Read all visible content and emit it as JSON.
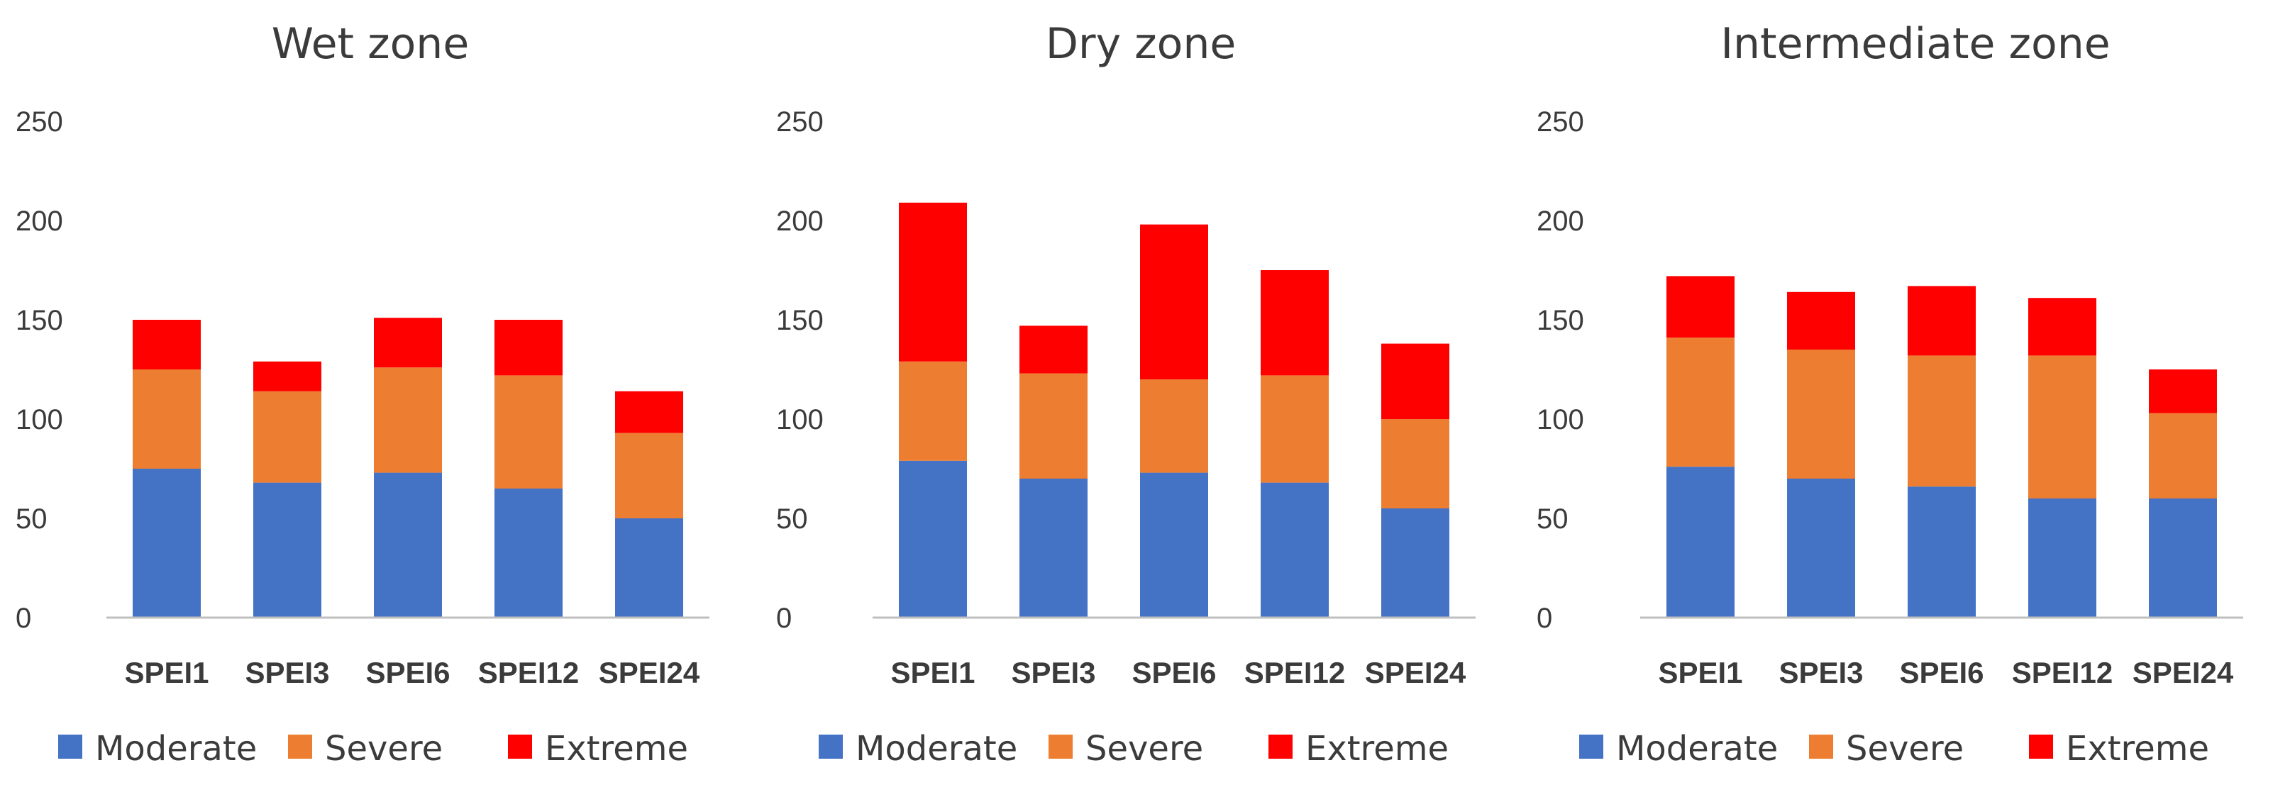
{
  "chart_data": [
    {
      "type": "bar",
      "stacked": true,
      "title": "Wet zone",
      "categories": [
        "SPEI1",
        "SPEI3",
        "SPEI6",
        "SPEI12",
        "SPEI24"
      ],
      "series": [
        {
          "name": "Moderate",
          "color": "#4472c4",
          "values": [
            75,
            68,
            73,
            65,
            50
          ]
        },
        {
          "name": "Severe",
          "color": "#ed7d31",
          "values": [
            50,
            46,
            53,
            57,
            43
          ]
        },
        {
          "name": "Extreme",
          "color": "#ff0000",
          "values": [
            25,
            15,
            25,
            28,
            21
          ]
        }
      ],
      "ylim": [
        0,
        250
      ],
      "yticks": [
        0,
        50,
        100,
        150,
        200,
        250
      ],
      "xlabel": "",
      "ylabel": "",
      "grid": false,
      "legend": "bottom"
    },
    {
      "type": "bar",
      "stacked": true,
      "title": "Dry zone",
      "categories": [
        "SPEI1",
        "SPEI3",
        "SPEI6",
        "SPEI12",
        "SPEI24"
      ],
      "series": [
        {
          "name": "Moderate",
          "color": "#4472c4",
          "values": [
            79,
            70,
            73,
            68,
            55
          ]
        },
        {
          "name": "Severe",
          "color": "#ed7d31",
          "values": [
            50,
            53,
            47,
            54,
            45
          ]
        },
        {
          "name": "Extreme",
          "color": "#ff0000",
          "values": [
            80,
            24,
            78,
            53,
            38
          ]
        }
      ],
      "ylim": [
        0,
        250
      ],
      "yticks": [
        0,
        50,
        100,
        150,
        200,
        250
      ],
      "xlabel": "",
      "ylabel": "",
      "grid": false,
      "legend": "bottom"
    },
    {
      "type": "bar",
      "stacked": true,
      "title": "Intermediate zone",
      "categories": [
        "SPEI1",
        "SPEI3",
        "SPEI6",
        "SPEI12",
        "SPEI24"
      ],
      "series": [
        {
          "name": "Moderate",
          "color": "#4472c4",
          "values": [
            76,
            70,
            66,
            60,
            60
          ]
        },
        {
          "name": "Severe",
          "color": "#ed7d31",
          "values": [
            65,
            65,
            66,
            72,
            43
          ]
        },
        {
          "name": "Extreme",
          "color": "#ff0000",
          "values": [
            31,
            29,
            35,
            29,
            22
          ]
        }
      ],
      "ylim": [
        0,
        250
      ],
      "yticks": [
        0,
        50,
        100,
        150,
        200,
        250
      ],
      "xlabel": "",
      "ylabel": "",
      "grid": false,
      "legend": "bottom"
    }
  ]
}
